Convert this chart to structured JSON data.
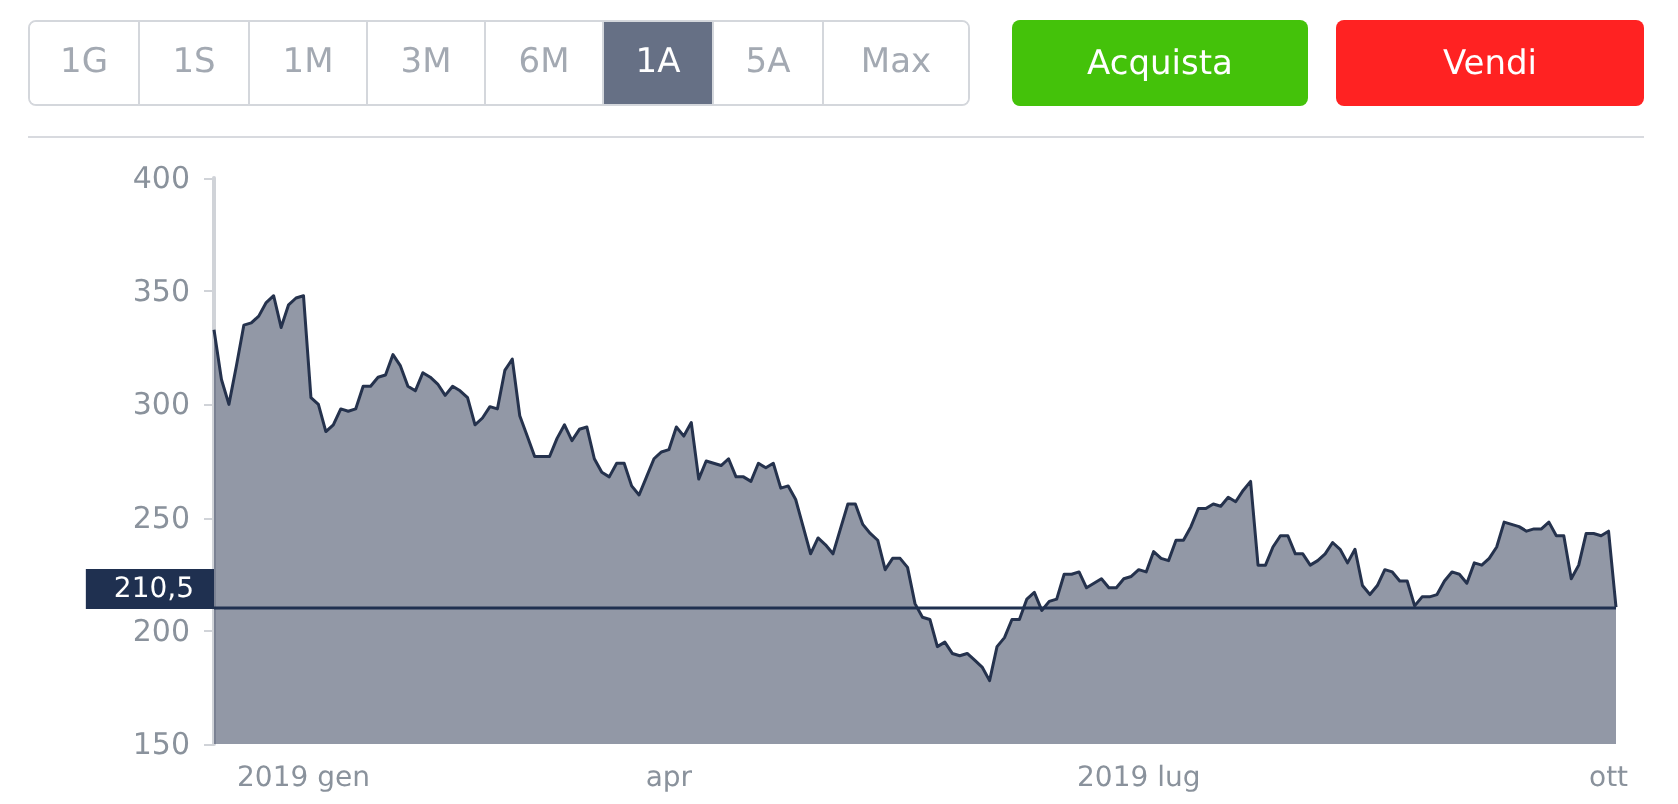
{
  "chart_data": {
    "type": "area",
    "categories": [
      null,
      null,
      null,
      null,
      null,
      null,
      null,
      null,
      null,
      null,
      null,
      null,
      "2019 gen",
      null,
      null,
      null,
      null,
      null,
      null,
      null,
      null,
      null,
      null,
      null,
      null,
      null,
      null,
      null,
      null,
      null,
      null,
      null,
      null,
      null,
      null,
      null,
      null,
      null,
      null,
      null,
      null,
      null,
      null,
      null,
      null,
      null,
      null,
      null,
      null,
      null,
      null,
      null,
      null,
      null,
      null,
      null,
      null,
      null,
      null,
      null,
      null,
      "apr",
      null,
      null,
      null,
      null,
      null,
      null,
      null,
      null,
      null,
      null,
      null,
      null,
      null,
      null,
      null,
      null,
      null,
      null,
      null,
      null,
      null,
      null,
      null,
      null,
      null,
      null,
      null,
      null,
      null,
      null,
      null,
      null,
      null,
      null,
      null,
      null,
      null,
      null,
      null,
      null,
      null,
      null,
      null,
      null,
      null,
      null,
      null,
      null,
      null,
      null,
      null,
      null,
      null,
      null,
      null,
      null,
      null,
      null,
      null,
      null,
      null,
      null,
      "2019 lug",
      null,
      null,
      null,
      null,
      null,
      null,
      null,
      null,
      null,
      null,
      null,
      null,
      null,
      null,
      null,
      null,
      null,
      null,
      null,
      null,
      null,
      null,
      null,
      null,
      null,
      null,
      null,
      null,
      null,
      null,
      null,
      null,
      null,
      null,
      null,
      null,
      null,
      null,
      null,
      null,
      null,
      null,
      null,
      null,
      null,
      null,
      null,
      null,
      null,
      null,
      null,
      null,
      null,
      null,
      null,
      null,
      null,
      null,
      null,
      null,
      null,
      null,
      "ott",
      null
    ],
    "series": [
      {
        "color": "#25324d",
        "values": [
          333,
          311,
          300,
          317,
          335,
          336,
          339,
          345,
          348,
          334,
          344,
          347,
          348,
          303,
          300,
          288,
          291,
          298,
          297,
          298,
          308,
          308,
          312,
          313,
          322,
          317,
          308,
          306,
          314,
          312,
          309,
          304,
          308,
          306,
          303,
          291,
          294,
          299,
          298,
          315,
          320,
          295,
          286,
          277,
          277,
          277,
          285,
          291,
          284,
          289,
          290,
          276,
          270,
          268,
          274,
          274,
          264,
          260,
          268,
          276,
          279,
          280,
          290,
          286,
          292,
          267,
          275,
          274,
          273,
          276,
          268,
          268,
          266,
          274,
          272,
          274,
          263,
          264,
          258,
          246,
          234,
          241,
          238,
          234,
          245,
          256,
          256,
          247,
          243,
          240,
          227,
          232,
          232,
          228,
          212,
          206,
          205,
          193,
          195,
          190,
          189,
          190,
          187,
          184,
          178,
          193,
          197,
          205,
          205,
          214,
          217,
          209,
          213,
          214,
          225,
          225,
          226,
          219,
          221,
          223,
          219,
          219,
          223,
          224,
          227,
          226,
          235,
          232,
          231,
          240,
          240,
          246,
          254,
          254,
          256,
          255,
          259,
          257,
          262,
          266,
          229,
          229,
          237,
          242,
          242,
          234,
          234,
          229,
          231,
          234,
          239,
          236,
          230,
          236,
          220,
          216,
          220,
          227,
          226,
          222,
          222,
          211,
          215,
          215,
          216,
          222,
          226,
          225,
          221,
          230,
          229,
          232,
          237,
          248,
          247,
          246,
          244,
          245,
          245,
          248,
          242,
          242,
          223,
          229,
          243,
          243,
          242,
          244,
          210.5
        ]
      }
    ],
    "ylim": [
      150,
      400
    ],
    "yticks": [
      150,
      200,
      250,
      300,
      350,
      400
    ],
    "ref_lines": [
      {
        "axis": "y",
        "value": 210.5,
        "label": "210,5",
        "color": "#1f3050"
      }
    ],
    "annotations": [
      "1G",
      "1S",
      "1M",
      "3M",
      "6M",
      "1A",
      "5A",
      "Max",
      "Acquista",
      "Vendi"
    ]
  }
}
